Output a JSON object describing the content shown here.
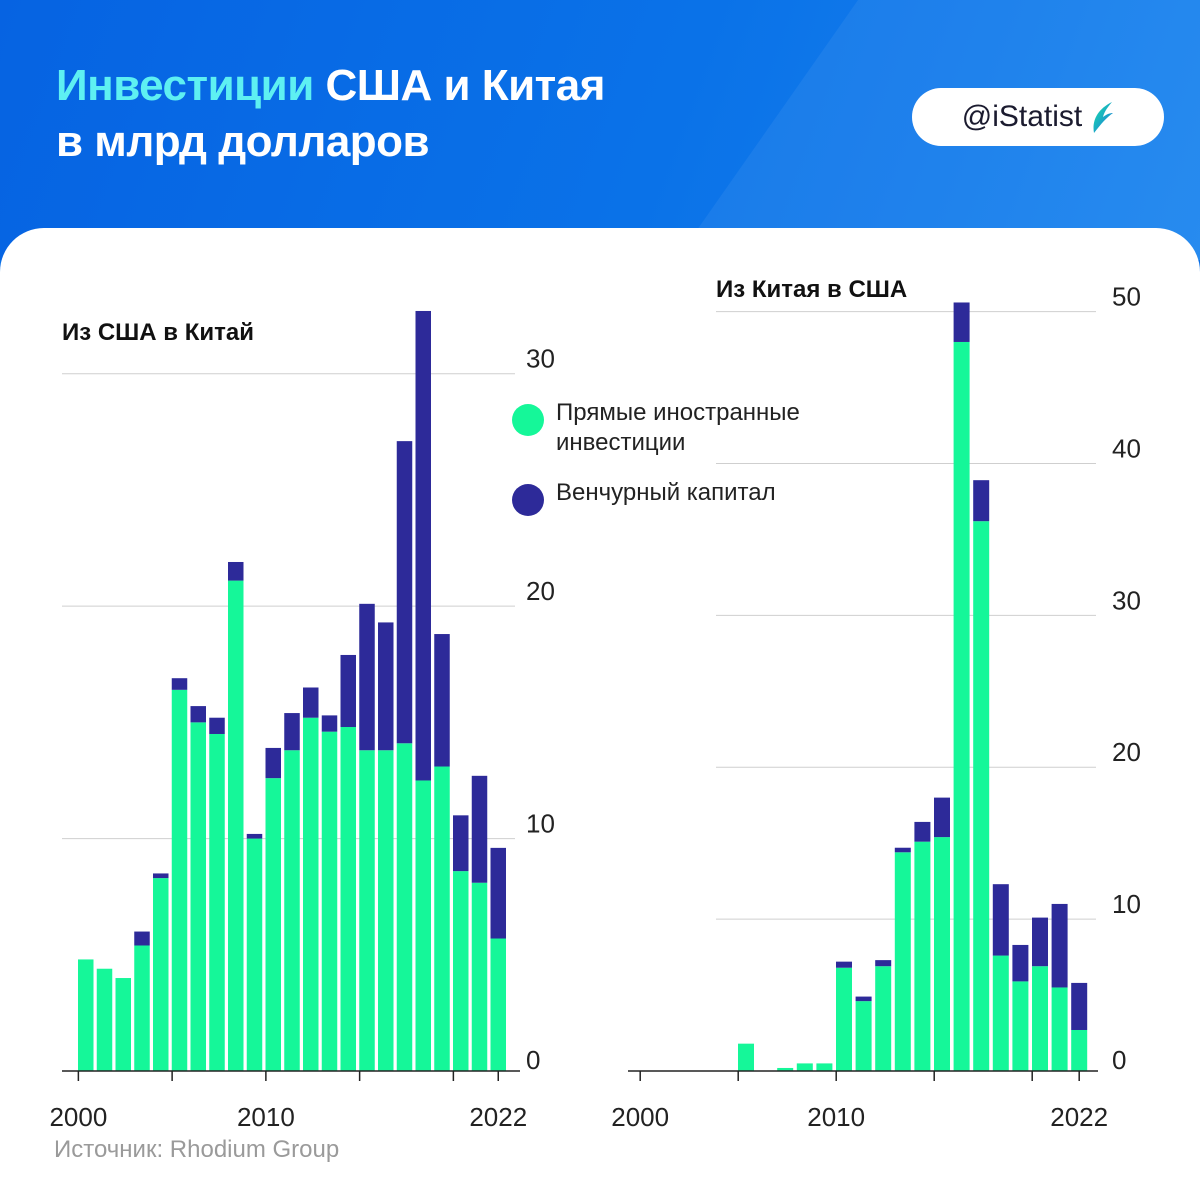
{
  "header": {
    "title_highlight": "Инвестиции",
    "title_rest_line1": " США и Китая",
    "title_line2": "в млрд долларов",
    "brand_handle": "@iStatist"
  },
  "colors": {
    "fdi": "#15f799",
    "vc": "#2d2a99",
    "grid": "#cfcfcf",
    "axis": "#222222",
    "title_highlight": "#5ef0f2"
  },
  "legend": {
    "fdi_line1": "Прямые иностранные",
    "fdi_line2": "инвестиции",
    "vc_label": "Венчурный капитал"
  },
  "source": "Источник: Rhodium Group",
  "chart_data": [
    {
      "type": "bar",
      "stacked": true,
      "title": "Из США в Китай",
      "x": [
        2000,
        2001,
        2002,
        2003,
        2004,
        2005,
        2006,
        2007,
        2008,
        2009,
        2010,
        2011,
        2012,
        2013,
        2014,
        2015,
        2016,
        2017,
        2018,
        2019,
        2020,
        2021,
        2022
      ],
      "xticks": [
        "2000",
        "2010",
        "2022"
      ],
      "yticks": [
        "0",
        "10",
        "20",
        "30"
      ],
      "ylim": [
        0,
        33
      ],
      "y_axis_side": "right",
      "series": [
        {
          "name": "Прямые иностранные инвестиции",
          "key": "fdi",
          "values": [
            4.8,
            4.4,
            4.0,
            5.4,
            8.3,
            16.4,
            15.0,
            14.5,
            21.1,
            10.0,
            12.6,
            13.8,
            15.2,
            14.6,
            14.8,
            13.8,
            13.8,
            14.1,
            12.5,
            13.1,
            8.6,
            8.1,
            5.7
          ]
        },
        {
          "name": "Венчурный капитал",
          "key": "vc",
          "values": [
            0.0,
            0.0,
            0.0,
            0.6,
            0.2,
            0.5,
            0.7,
            0.7,
            0.8,
            0.2,
            1.3,
            1.6,
            1.3,
            0.7,
            3.1,
            6.3,
            5.5,
            13.0,
            20.2,
            5.7,
            2.4,
            4.6,
            3.9
          ]
        }
      ]
    },
    {
      "type": "bar",
      "stacked": true,
      "title": "Из Китая в США",
      "x": [
        2000,
        2001,
        2002,
        2003,
        2004,
        2005,
        2006,
        2007,
        2008,
        2009,
        2010,
        2011,
        2012,
        2013,
        2014,
        2015,
        2016,
        2017,
        2018,
        2019,
        2020,
        2021,
        2022
      ],
      "xticks": [
        "2000",
        "2010",
        "2022"
      ],
      "yticks": [
        "0",
        "10",
        "20",
        "30",
        "40",
        "50"
      ],
      "ylim": [
        0,
        50.5
      ],
      "y_axis_side": "right",
      "series": [
        {
          "name": "Прямые иностранные инвестиции",
          "key": "fdi",
          "values": [
            0.0,
            0.0,
            0.0,
            0.0,
            0.0,
            1.8,
            0.0,
            0.2,
            0.5,
            0.5,
            6.8,
            4.6,
            6.9,
            14.4,
            15.1,
            15.4,
            48.0,
            36.2,
            7.6,
            5.9,
            6.9,
            5.5,
            2.7
          ]
        },
        {
          "name": "Венчурный капитал",
          "key": "vc",
          "values": [
            0.0,
            0.0,
            0.0,
            0.0,
            0.0,
            0.0,
            0.0,
            0.0,
            0.0,
            0.0,
            0.4,
            0.3,
            0.4,
            0.3,
            1.3,
            2.6,
            2.6,
            2.7,
            4.7,
            2.4,
            3.2,
            5.5,
            3.1
          ]
        }
      ]
    }
  ]
}
